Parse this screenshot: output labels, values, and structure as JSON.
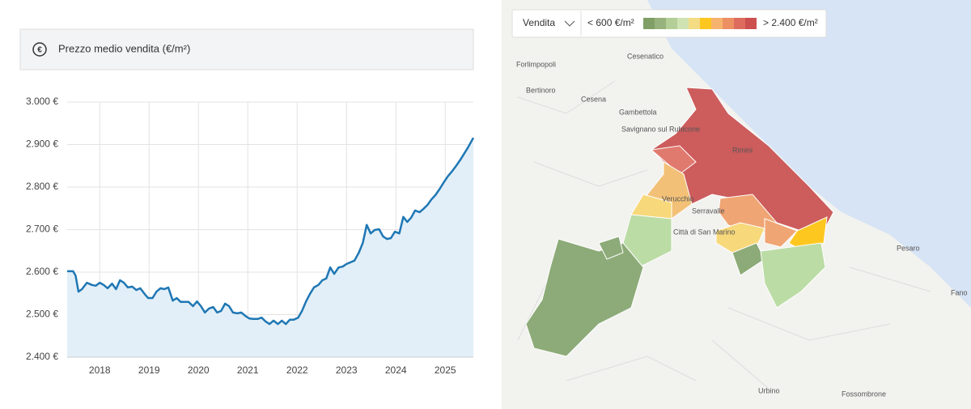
{
  "header": {
    "title": "Prezzo medio vendita (€/m²)",
    "icon": "€"
  },
  "chart_data": {
    "type": "line",
    "color": "#1f77b4",
    "area_color": "#e2eff8",
    "grid": true,
    "x": [
      2017.34,
      2017.46,
      2017.51,
      2017.57,
      2017.64,
      2017.74,
      2017.84,
      2017.92,
      2018.0,
      2018.08,
      2018.16,
      2018.25,
      2018.33,
      2018.41,
      2018.49,
      2018.57,
      2018.66,
      2018.74,
      2018.82,
      2018.9,
      2018.98,
      2019.07,
      2019.15,
      2019.23,
      2019.31,
      2019.39,
      2019.48,
      2019.56,
      2019.64,
      2019.72,
      2019.8,
      2019.89,
      2019.97,
      2020.05,
      2020.13,
      2020.21,
      2020.3,
      2020.38,
      2020.46,
      2020.54,
      2020.62,
      2020.7,
      2020.79,
      2020.87,
      2020.95,
      2021.03,
      2021.11,
      2021.2,
      2021.28,
      2021.36,
      2021.44,
      2021.52,
      2021.61,
      2021.69,
      2021.77,
      2021.85,
      2021.93,
      2022.02,
      2022.1,
      2022.18,
      2022.26,
      2022.34,
      2022.43,
      2022.51,
      2022.59,
      2022.67,
      2022.75,
      2022.84,
      2022.92,
      2023.0,
      2023.08,
      2023.16,
      2023.25,
      2023.33,
      2023.41,
      2023.49,
      2023.57,
      2023.66,
      2023.74,
      2023.82,
      2023.9,
      2023.98,
      2024.07,
      2024.15,
      2024.23,
      2024.31,
      2024.39,
      2024.48,
      2024.56,
      2024.64,
      2024.72,
      2024.8,
      2024.89,
      2024.97,
      2025.05,
      2025.13,
      2025.21,
      2025.3,
      2025.38,
      2025.46,
      2025.57
    ],
    "values": [
      2602,
      2602,
      2592,
      2554,
      2560,
      2575,
      2570,
      2568,
      2575,
      2570,
      2562,
      2573,
      2560,
      2581,
      2575,
      2564,
      2566,
      2558,
      2562,
      2550,
      2539,
      2539,
      2554,
      2562,
      2560,
      2564,
      2533,
      2539,
      2530,
      2530,
      2530,
      2520,
      2531,
      2520,
      2505,
      2514,
      2518,
      2505,
      2509,
      2526,
      2520,
      2505,
      2503,
      2505,
      2497,
      2491,
      2490,
      2490,
      2493,
      2484,
      2478,
      2486,
      2478,
      2486,
      2478,
      2488,
      2488,
      2493,
      2509,
      2531,
      2549,
      2564,
      2570,
      2581,
      2585,
      2611,
      2596,
      2611,
      2613,
      2619,
      2623,
      2627,
      2646,
      2669,
      2711,
      2691,
      2699,
      2701,
      2684,
      2678,
      2680,
      2695,
      2691,
      2730,
      2718,
      2728,
      2745,
      2741,
      2749,
      2758,
      2771,
      2781,
      2796,
      2811,
      2825,
      2836,
      2848,
      2863,
      2878,
      2893,
      2916
    ],
    "xlim": [
      2017.34,
      2025.57
    ],
    "xticks": [
      2018,
      2019,
      2020,
      2021,
      2022,
      2023,
      2024,
      2025
    ],
    "ylim": [
      2400,
      3000
    ],
    "yticks": [
      {
        "value": 2400,
        "label": "2.400 €"
      },
      {
        "value": 2500,
        "label": "2.500 €"
      },
      {
        "value": 2600,
        "label": "2.600 €"
      },
      {
        "value": 2700,
        "label": "2.700 €"
      },
      {
        "value": 2800,
        "label": "2.800 €"
      },
      {
        "value": 2900,
        "label": "2.900 €"
      },
      {
        "value": 3000,
        "label": "3.000 €"
      }
    ]
  },
  "map": {
    "mode": "Vendita",
    "legend_low": "< 600 €/m²",
    "legend_high": "> 2.400 €/m²",
    "places": [
      "Forlimpopoli",
      "Bertinoro",
      "Cesena",
      "Cesenatico",
      "Gambettola",
      "Savignano sul Rubicone",
      "Rimini",
      "Verucchio",
      "Serravalle",
      "Città di San Marino",
      "Pesaro",
      "Fano",
      "Urbino",
      "Fossombrone"
    ]
  }
}
